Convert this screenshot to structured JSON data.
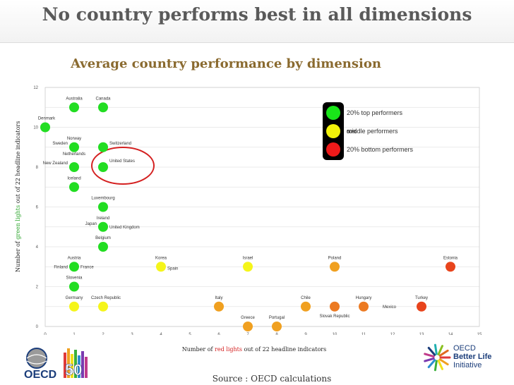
{
  "slide_title": "No country performs best in all dimensions",
  "chart_subtitle": "Average country performance by dimension",
  "y_label": {
    "before": "Number of ",
    "highlight": "green lights",
    "after": " out of 22 headline indicators"
  },
  "x_label": {
    "before": "Number of ",
    "highlight": "red lights",
    "after": " out of 22 headline indicators"
  },
  "source": "Source : OECD calculations",
  "oecd_logo_text": "OECD",
  "oecd_anniversary": "50",
  "bli_logo": {
    "line1": "OECD",
    "line2": "Better Life",
    "line3": "Initiative"
  },
  "legend": {
    "items": [
      {
        "label": "20% top performers",
        "color": "#19e619"
      },
      {
        "label": "middle performers",
        "color": "#f2f20a"
      },
      {
        "label": "20% bottom performers",
        "color": "#ee1a1a"
      }
    ],
    "note": "60%"
  },
  "colors": {
    "top": "#22dd22",
    "middle": "#f5f51a",
    "orange": "#f0a020",
    "orange_dark": "#ec7a22",
    "bottom": "#e8441c",
    "highlight_circle": "#d42020"
  },
  "chart_data": {
    "type": "scatter",
    "x_ticks": [
      0,
      1,
      2,
      3,
      4,
      5,
      6,
      7,
      8,
      9,
      10,
      11,
      12,
      13,
      14,
      15
    ],
    "y_ticks": [
      0,
      2,
      4,
      6,
      8,
      10,
      12
    ],
    "xlim": [
      0,
      15
    ],
    "ylim": [
      0,
      12
    ],
    "grid": true,
    "highlight": "United States",
    "points": [
      {
        "label": "Australia",
        "x": 1,
        "y": 11,
        "color": "top"
      },
      {
        "label": "Canada",
        "x": 2,
        "y": 11,
        "color": "top"
      },
      {
        "label": "Denmark",
        "x": 0,
        "y": 10,
        "color": "top"
      },
      {
        "label": "Norway",
        "x": 1,
        "y": 9,
        "color": "top"
      },
      {
        "label": "Sweden",
        "x": 1,
        "y": 9,
        "color": "top"
      },
      {
        "label": "Switzerland",
        "x": 2,
        "y": 9,
        "color": "top"
      },
      {
        "label": "Netherlands",
        "x": 1,
        "y": 8,
        "color": "top"
      },
      {
        "label": "New Zealand",
        "x": 1,
        "y": 8,
        "color": "top"
      },
      {
        "label": "United States",
        "x": 2,
        "y": 8,
        "color": "top"
      },
      {
        "label": "Iceland",
        "x": 1,
        "y": 7,
        "color": "top"
      },
      {
        "label": "Luxembourg",
        "x": 2,
        "y": 6,
        "color": "top"
      },
      {
        "label": "Ireland",
        "x": 2,
        "y": 5,
        "color": "top"
      },
      {
        "label": "Japan",
        "x": 2,
        "y": 5,
        "color": "top"
      },
      {
        "label": "United Kingdom",
        "x": 2,
        "y": 5,
        "color": "top"
      },
      {
        "label": "Belgium",
        "x": 2,
        "y": 4,
        "color": "top"
      },
      {
        "label": "Austria",
        "x": 1,
        "y": 3,
        "color": "top"
      },
      {
        "label": "Finland",
        "x": 1,
        "y": 3,
        "color": "top"
      },
      {
        "label": "France",
        "x": 1,
        "y": 3,
        "color": "top"
      },
      {
        "label": "Slovenia",
        "x": 1,
        "y": 2,
        "color": "top"
      },
      {
        "label": "Germany",
        "x": 1,
        "y": 1,
        "color": "middle"
      },
      {
        "label": "Czech Republic",
        "x": 2,
        "y": 1,
        "color": "middle"
      },
      {
        "label": "Korea",
        "x": 4,
        "y": 3,
        "color": "middle"
      },
      {
        "label": "Spain",
        "x": 4,
        "y": 3,
        "color": "middle"
      },
      {
        "label": "Israel",
        "x": 7,
        "y": 3,
        "color": "middle"
      },
      {
        "label": "Italy",
        "x": 6,
        "y": 1,
        "color": "orange"
      },
      {
        "label": "Greece",
        "x": 7,
        "y": 0,
        "color": "orange"
      },
      {
        "label": "Portugal",
        "x": 8,
        "y": 0,
        "color": "orange"
      },
      {
        "label": "Chile",
        "x": 9,
        "y": 1,
        "color": "orange"
      },
      {
        "label": "Poland",
        "x": 10,
        "y": 3,
        "color": "orange"
      },
      {
        "label": "Slovak Republic",
        "x": 10,
        "y": 1,
        "color": "orange_dark"
      },
      {
        "label": "Hungary",
        "x": 11,
        "y": 1,
        "color": "orange_dark"
      },
      {
        "label": "Mexico",
        "x": 11,
        "y": 1,
        "color": "orange_dark"
      },
      {
        "label": "Turkey",
        "x": 13,
        "y": 1,
        "color": "bottom"
      },
      {
        "label": "Estonia",
        "x": 14,
        "y": 3,
        "color": "bottom"
      }
    ]
  }
}
